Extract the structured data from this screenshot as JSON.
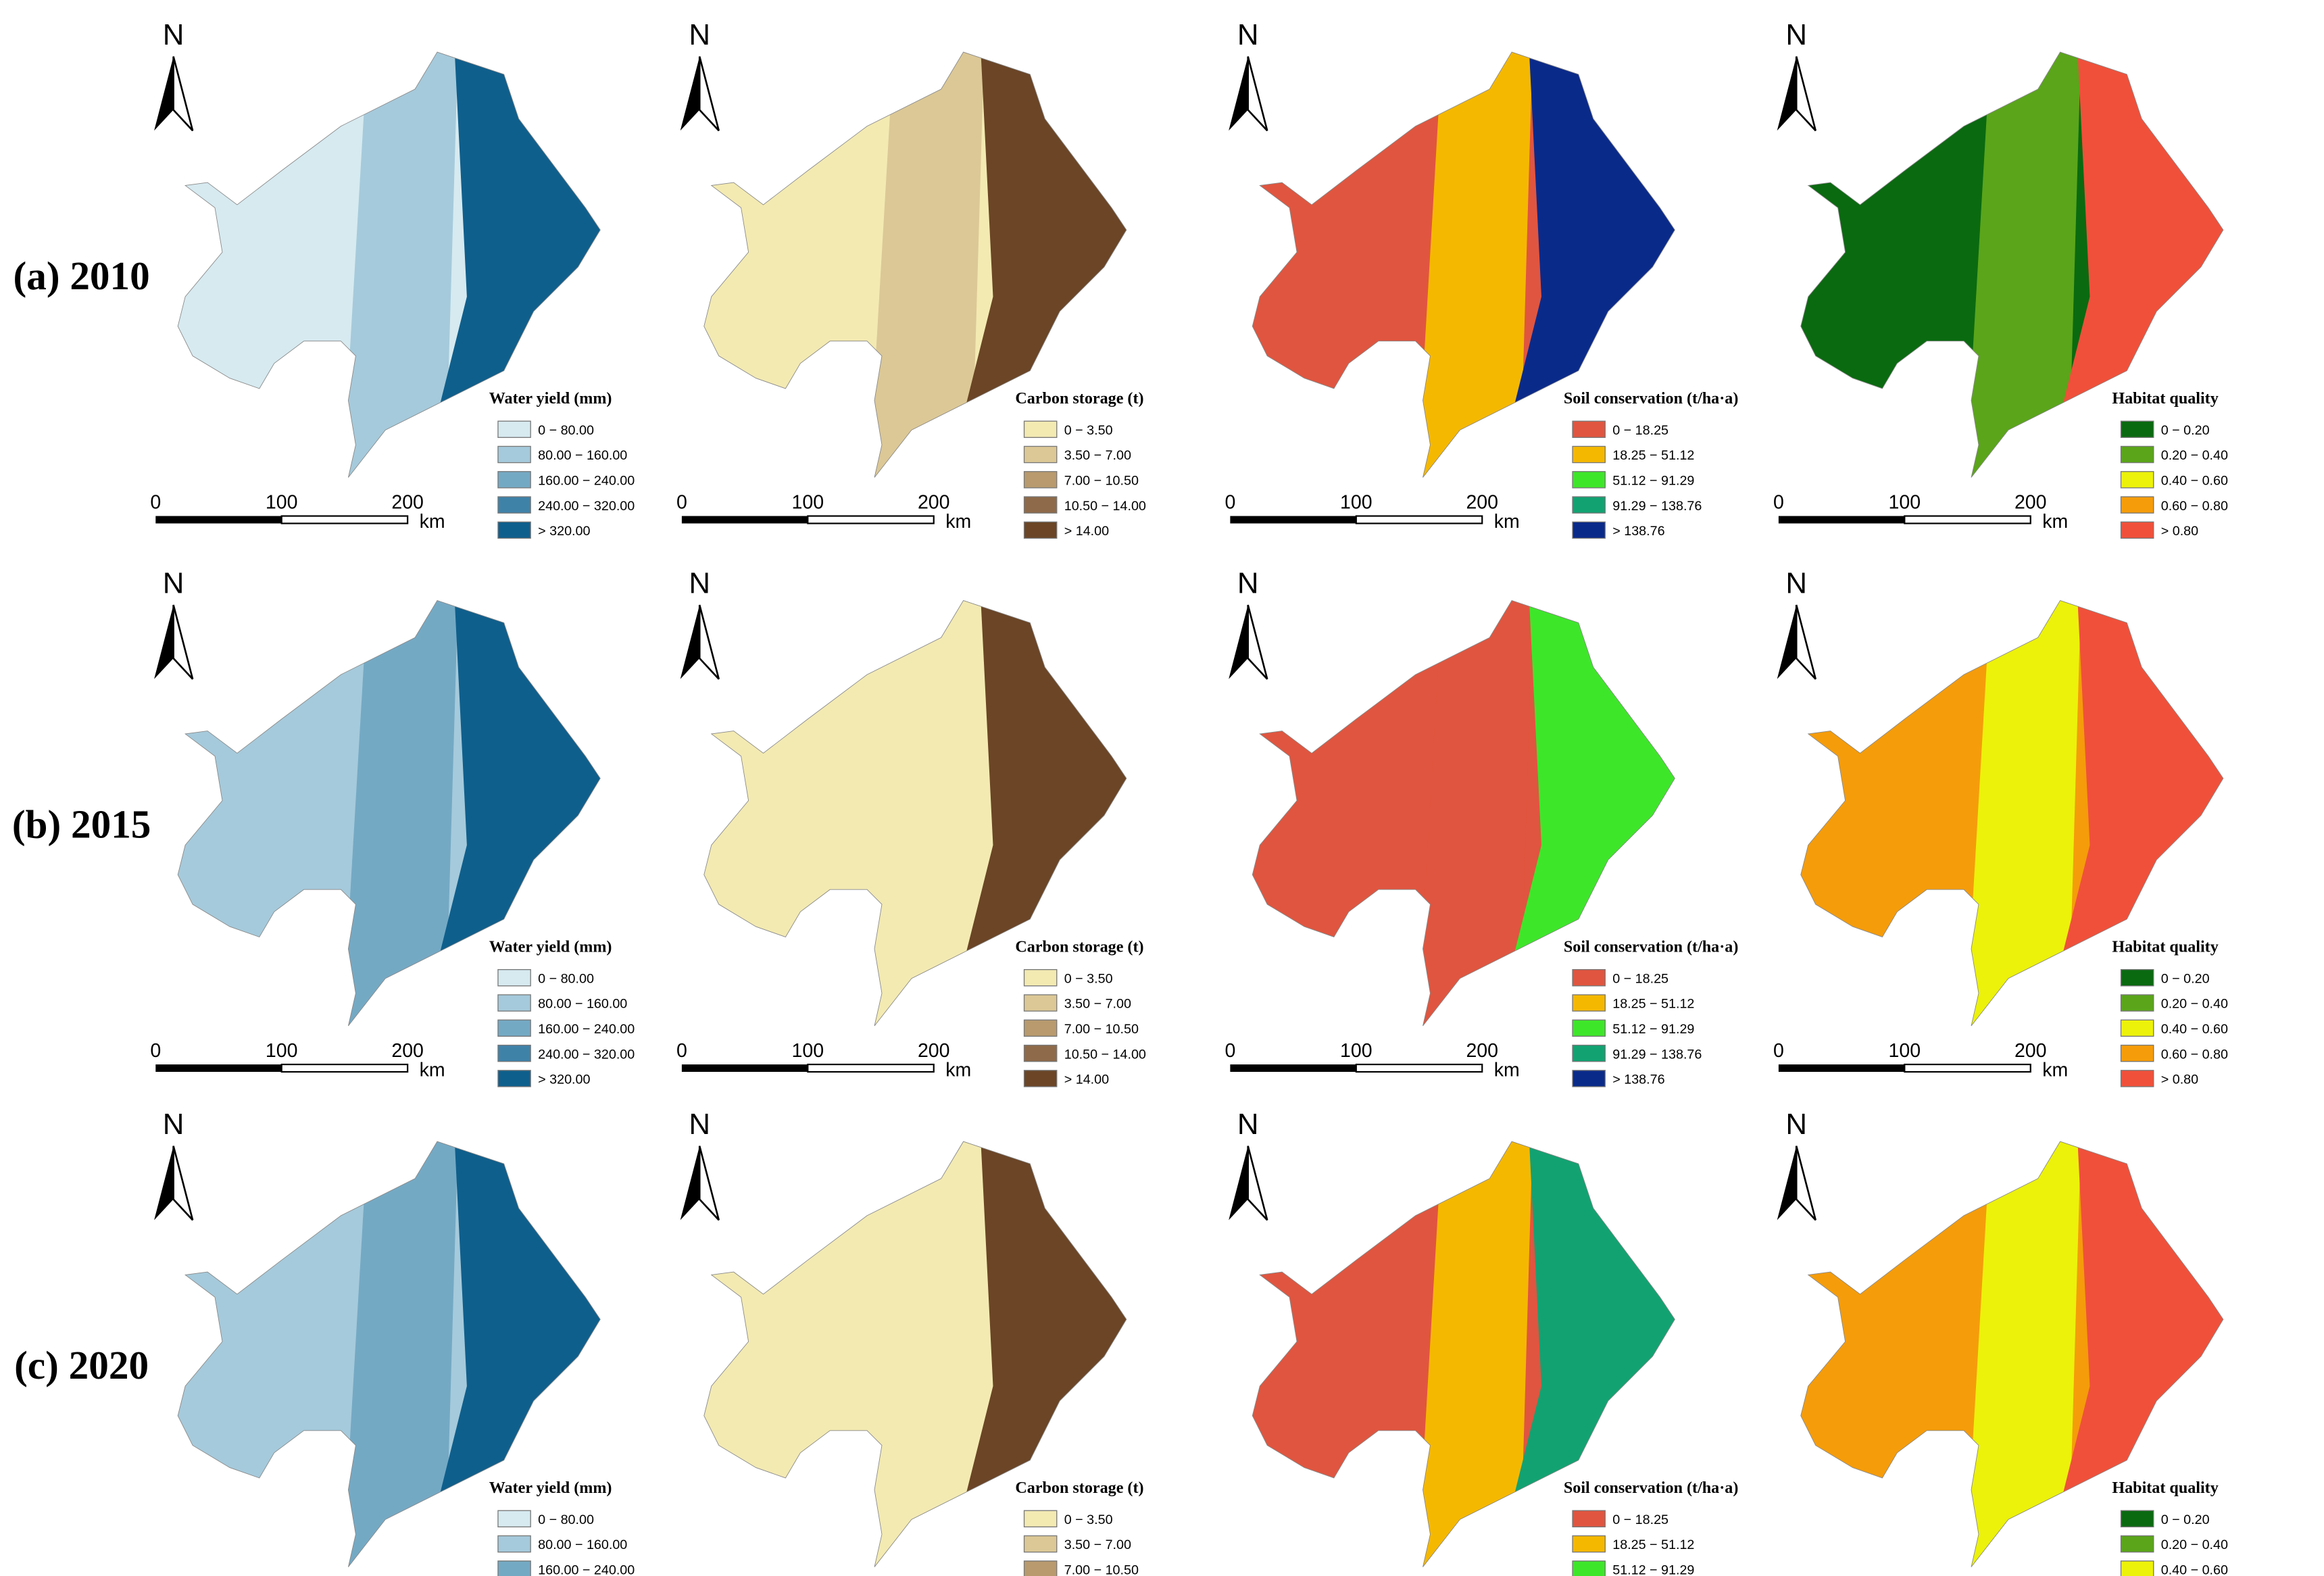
{
  "rows": [
    {
      "label": "(a) 2010"
    },
    {
      "label": "(b) 2015"
    },
    {
      "label": "(c) 2020"
    }
  ],
  "panels": [
    {
      "legend_title": "Water yield (mm)",
      "classes": [
        {
          "label": "0 − 80.00",
          "color": "#d6eaf0"
        },
        {
          "label": "80.00 − 160.00",
          "color": "#a5cadb"
        },
        {
          "label": "160.00 − 240.00",
          "color": "#74a9c4"
        },
        {
          "label": "240.00 − 320.00",
          "color": "#3f82a8"
        },
        {
          "label": "> 320.00",
          "color": "#0f5f8c"
        }
      ]
    },
    {
      "legend_title": "Carbon storage (t)",
      "classes": [
        {
          "label": "0 − 3.50",
          "color": "#f3eab2"
        },
        {
          "label": "3.50 − 7.00",
          "color": "#dcc896"
        },
        {
          "label": "7.00 − 10.50",
          "color": "#b89a6e"
        },
        {
          "label": "10.50 − 14.00",
          "color": "#8e6a4a"
        },
        {
          "label": "> 14.00",
          "color": "#6b4526"
        }
      ]
    },
    {
      "legend_title": "Soil conservation (t/ha·a)",
      "classes": [
        {
          "label": "0 − 18.25",
          "color": "#e0553f"
        },
        {
          "label": "18.25 − 51.12",
          "color": "#f5b800"
        },
        {
          "label": "51.12 − 91.29",
          "color": "#3ee62a"
        },
        {
          "label": "91.29 − 138.76",
          "color": "#12a272"
        },
        {
          "label": "> 138.76",
          "color": "#0a2a8a"
        }
      ]
    },
    {
      "legend_title": "Habitat quality",
      "classes": [
        {
          "label": "0 − 0.20",
          "color": "#0a6a10"
        },
        {
          "label": "0.20 − 0.40",
          "color": "#5aa51a"
        },
        {
          "label": "0.40 − 0.60",
          "color": "#ecf20a"
        },
        {
          "label": "0.60 − 0.80",
          "color": "#f59c0a"
        },
        {
          "label": "> 0.80",
          "color": "#f0503a"
        }
      ]
    }
  ],
  "north": "N",
  "scale": {
    "labels": [
      "0",
      "100",
      "200"
    ],
    "unit": "km"
  }
}
